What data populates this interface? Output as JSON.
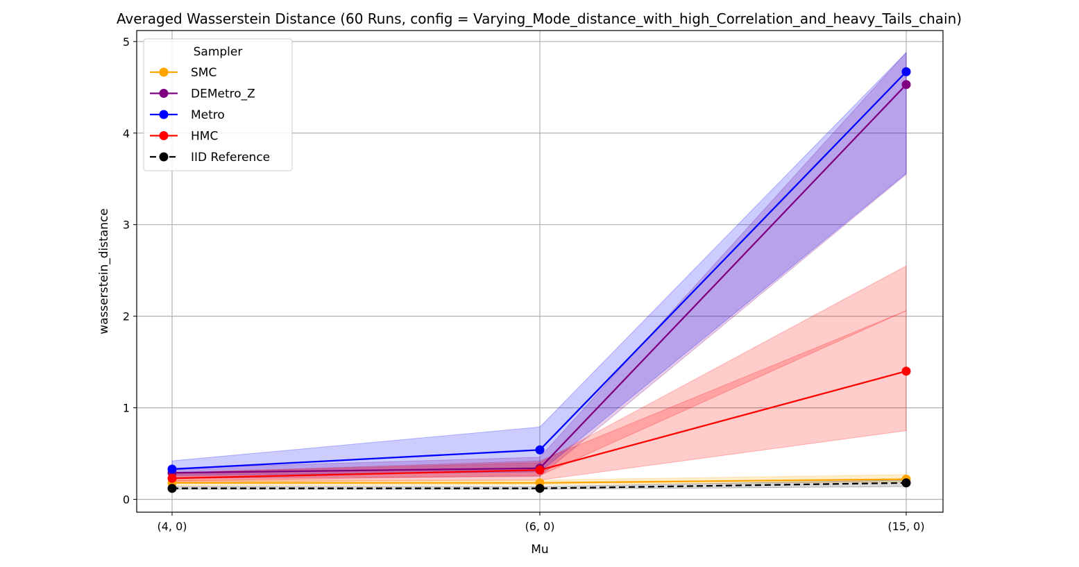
{
  "chart_data": {
    "type": "line",
    "title": "Averaged Wasserstein Distance (60 Runs, config = Varying_Mode_distance_with_high_Correlation_and_heavy_Tails_chain)",
    "xlabel": "Mu",
    "ylabel": "wasserstein_distance",
    "categories": [
      "(4, 0)",
      "(6, 0)",
      "(15, 0)"
    ],
    "ylim": [
      -0.14,
      5.12
    ],
    "yticks": [
      "0",
      "1",
      "2",
      "3",
      "4",
      "5"
    ],
    "grid": true,
    "legend": {
      "title": "Sampler",
      "placement": "top-left"
    },
    "series": [
      {
        "name": "SMC",
        "color": "#FFA500",
        "dashed": false,
        "values": [
          0.18,
          0.18,
          0.22
        ],
        "lower": [
          0.15,
          0.16,
          0.19
        ],
        "upper": [
          0.21,
          0.21,
          0.27
        ]
      },
      {
        "name": "DEMetro_Z",
        "color": "#800080",
        "dashed": false,
        "values": [
          0.29,
          0.34,
          4.53
        ],
        "lower": [
          0.23,
          0.25,
          3.55
        ],
        "upper": [
          0.34,
          0.46,
          4.88
        ]
      },
      {
        "name": "Metro",
        "color": "#0000FF",
        "dashed": false,
        "values": [
          0.33,
          0.54,
          4.67
        ],
        "lower": [
          0.26,
          0.3,
          3.56
        ],
        "upper": [
          0.42,
          0.79,
          4.88
        ]
      },
      {
        "name": "HMC",
        "color": "#FF0000",
        "dashed": false,
        "values": [
          0.23,
          0.32,
          1.4
        ],
        "lower": [
          0.19,
          0.21,
          0.75
        ],
        "upper": [
          0.29,
          0.42,
          2.06
        ]
      },
      {
        "name": "IID Reference",
        "color": "#000000",
        "dashed": true,
        "values": [
          0.12,
          0.12,
          0.18
        ],
        "lower": [
          0.11,
          0.11,
          0.14
        ],
        "upper": [
          0.14,
          0.14,
          0.21
        ]
      }
    ],
    "extra_bands": [
      {
        "color": "#FF0000",
        "lower": [
          0.2,
          0.26,
          2.06
        ],
        "upper": [
          0.29,
          0.4,
          2.55
        ]
      }
    ]
  }
}
